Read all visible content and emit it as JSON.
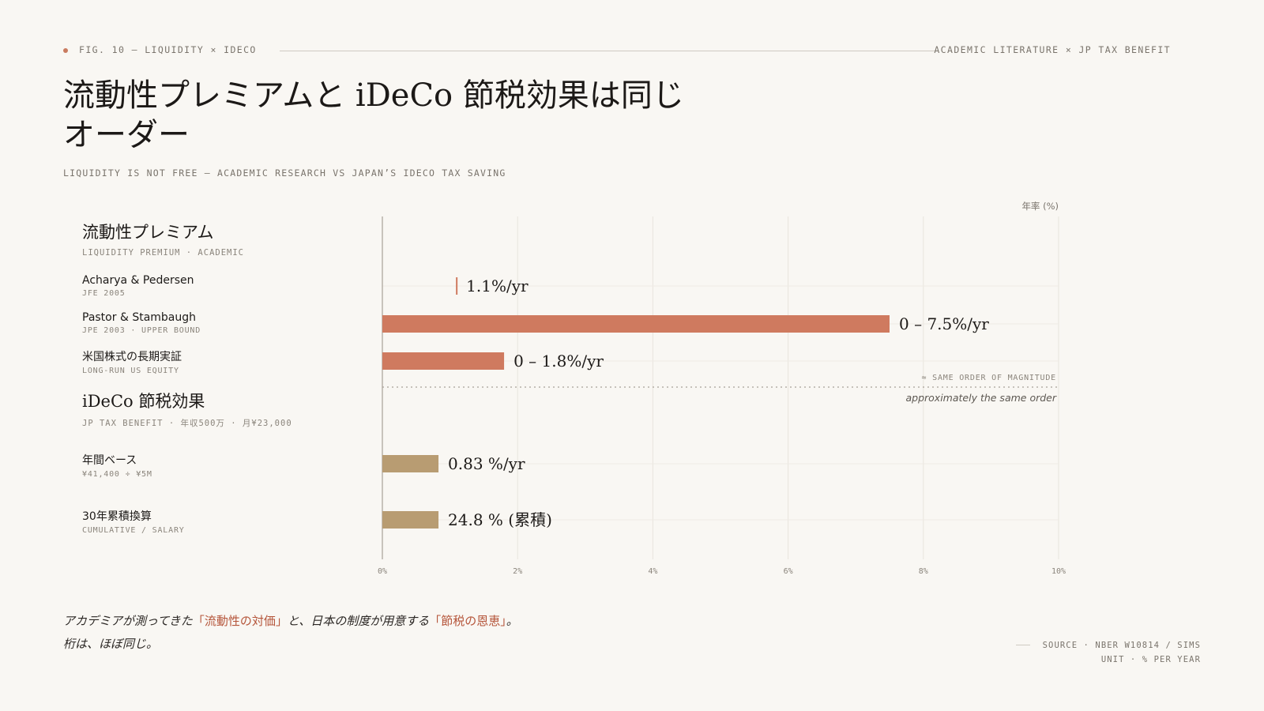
{
  "header": {
    "fig_label": "FIG. 10 — LIQUIDITY × IDECO",
    "right_label": "ACADEMIC LITERATURE × JP TAX BENEFIT",
    "title": "流動性プレミアムと iDeCo 節税効果は同じオーダー",
    "subtitle": "LIQUIDITY IS NOT FREE — ACADEMIC RESEARCH VS JAPAN’S IDECO TAX SAVING"
  },
  "colors": {
    "academic": "#cf7a5f",
    "tax": "#b89c72",
    "accent": "#b5553a"
  },
  "sections": {
    "academic": {
      "title": "流動性プレミアム",
      "sub": "LIQUIDITY PREMIUM · ACADEMIC"
    },
    "tax": {
      "title": "iDeCo 節税効果",
      "sub": "JP TAX BENEFIT · 年収500万 · 月¥23,000"
    }
  },
  "chart_data": {
    "type": "bar",
    "orientation": "horizontal",
    "unit_label": "年率 (%)",
    "xlim": [
      0,
      10
    ],
    "ticks": [
      "0%",
      "2%",
      "4%",
      "6%",
      "8%",
      "10%"
    ],
    "grid": true,
    "rows": [
      {
        "name": "Acharya & Pedersen",
        "sub": "JFE 2005",
        "group": "academic",
        "marker": 1.1,
        "value_label": "1.1%/yr"
      },
      {
        "name": "Pastor & Stambaugh",
        "sub": "JPE 2003 · UPPER BOUND",
        "group": "academic",
        "range": [
          0,
          7.5
        ],
        "value_label": "0 – 7.5%/yr"
      },
      {
        "name": "米国株式の長期実証",
        "sub": "LONG-RUN US EQUITY",
        "group": "academic",
        "range": [
          0,
          1.8
        ],
        "value_label": "0 – 1.8%/yr"
      },
      {
        "name": "年間ベース",
        "sub": "¥41,400 ÷ ¥5M",
        "group": "tax",
        "value": 0.83,
        "value_label": "0.83 %/yr"
      },
      {
        "name": "30年累積換算",
        "sub": "CUMULATIVE / SALARY",
        "group": "tax",
        "value": 0.83,
        "value_label": "24.8 % (累積)"
      }
    ],
    "annotation": {
      "tag": "≈ SAME ORDER OF MAGNITUDE",
      "note": "approximately the same order"
    }
  },
  "caption": {
    "p1": "アカデミアが測ってきた",
    "h1": "「流動性の対価」",
    "p2": "と、日本の制度が用意する",
    "h2": "「節税の恩恵」",
    "p3": "。",
    "line2": "桁は、ほぼ同じ。"
  },
  "source": {
    "line1": "SOURCE · NBER W10814 / SIMS",
    "line2": "UNIT · % PER YEAR"
  }
}
